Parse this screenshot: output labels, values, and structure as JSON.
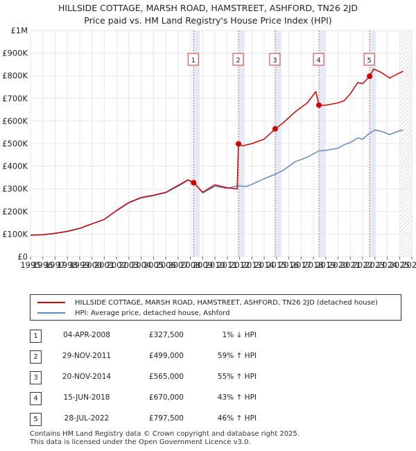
{
  "title_line1": "HILLSIDE COTTAGE, MARSH ROAD, HAMSTREET, ASHFORD, TN26 2JD",
  "title_line2": "Price paid vs. HM Land Registry's House Price Index (HPI)",
  "colors": {
    "property": "#cc0000",
    "hpi": "#5b8ac0",
    "vline": "#e06060",
    "shade": "#dde6f3",
    "grid": "#e6e6e6"
  },
  "chart_data": {
    "type": "line",
    "xlim": [
      1995,
      2026
    ],
    "ylim": [
      0,
      1000000
    ],
    "x_ticks": [
      1995,
      1996,
      1997,
      1998,
      1999,
      2000,
      2001,
      2002,
      2003,
      2004,
      2005,
      2006,
      2007,
      2008,
      2009,
      2010,
      2011,
      2012,
      2013,
      2014,
      2015,
      2016,
      2017,
      2018,
      2019,
      2020,
      2021,
      2022,
      2023,
      2024,
      2025,
      2026
    ],
    "y_ticks": [
      {
        "value": 0,
        "label": "£0"
      },
      {
        "value": 100000,
        "label": "£100K"
      },
      {
        "value": 200000,
        "label": "£200K"
      },
      {
        "value": 300000,
        "label": "£300K"
      },
      {
        "value": 400000,
        "label": "£400K"
      },
      {
        "value": 500000,
        "label": "£500K"
      },
      {
        "value": 600000,
        "label": "£600K"
      },
      {
        "value": 700000,
        "label": "£700K"
      },
      {
        "value": 800000,
        "label": "£800K"
      },
      {
        "value": 900000,
        "label": "£900K"
      },
      {
        "value": 1000000,
        "label": "£1M"
      }
    ],
    "grid": true,
    "future_shade_from": 2025.0,
    "series": [
      {
        "name": "HILLSIDE COTTAGE, MARSH ROAD, HAMSTREET, ASHFORD, TN26 2JD (detached house)",
        "color": "#cc0000",
        "points": [
          [
            1995.0,
            95000
          ],
          [
            1996.0,
            97000
          ],
          [
            1997.0,
            103000
          ],
          [
            1998.0,
            112000
          ],
          [
            1999.0,
            125000
          ],
          [
            2000.0,
            145000
          ],
          [
            2001.0,
            165000
          ],
          [
            2002.0,
            205000
          ],
          [
            2003.0,
            240000
          ],
          [
            2004.0,
            262000
          ],
          [
            2005.0,
            272000
          ],
          [
            2006.0,
            285000
          ],
          [
            2007.0,
            315000
          ],
          [
            2007.8,
            340000
          ],
          [
            2008.26,
            327500
          ],
          [
            2009.0,
            285000
          ],
          [
            2010.0,
            318000
          ],
          [
            2011.0,
            305000
          ],
          [
            2011.8,
            300000
          ],
          [
            2011.91,
            499000
          ],
          [
            2012.2,
            490000
          ],
          [
            2013.0,
            500000
          ],
          [
            2014.0,
            520000
          ],
          [
            2014.89,
            565000
          ],
          [
            2015.5,
            590000
          ],
          [
            2016.5,
            640000
          ],
          [
            2017.5,
            680000
          ],
          [
            2018.2,
            730000
          ],
          [
            2018.45,
            670000
          ],
          [
            2019.0,
            670000
          ],
          [
            2020.0,
            680000
          ],
          [
            2020.5,
            690000
          ],
          [
            2021.0,
            720000
          ],
          [
            2021.6,
            770000
          ],
          [
            2022.0,
            765000
          ],
          [
            2022.57,
            797500
          ],
          [
            2022.9,
            830000
          ],
          [
            2023.5,
            815000
          ],
          [
            2024.2,
            790000
          ],
          [
            2024.9,
            810000
          ],
          [
            2025.3,
            820000
          ]
        ]
      },
      {
        "name": "HPI: Average price, detached house, Ashford",
        "color": "#5b8ac0",
        "points": [
          [
            1995.0,
            96000
          ],
          [
            1996.0,
            98000
          ],
          [
            1997.0,
            104000
          ],
          [
            1998.0,
            113000
          ],
          [
            1999.0,
            126000
          ],
          [
            2000.0,
            146000
          ],
          [
            2001.0,
            165000
          ],
          [
            2002.0,
            203000
          ],
          [
            2003.0,
            238000
          ],
          [
            2004.0,
            260000
          ],
          [
            2005.0,
            270000
          ],
          [
            2006.0,
            283000
          ],
          [
            2007.0,
            312000
          ],
          [
            2007.8,
            338000
          ],
          [
            2008.26,
            330000
          ],
          [
            2009.0,
            282000
          ],
          [
            2010.0,
            312000
          ],
          [
            2011.0,
            302000
          ],
          [
            2011.91,
            314000
          ],
          [
            2012.5,
            310000
          ],
          [
            2013.0,
            320000
          ],
          [
            2014.0,
            345000
          ],
          [
            2014.89,
            365000
          ],
          [
            2015.5,
            380000
          ],
          [
            2016.5,
            420000
          ],
          [
            2017.5,
            440000
          ],
          [
            2018.45,
            468000
          ],
          [
            2019.0,
            470000
          ],
          [
            2020.0,
            480000
          ],
          [
            2020.5,
            495000
          ],
          [
            2021.0,
            505000
          ],
          [
            2021.6,
            525000
          ],
          [
            2022.0,
            520000
          ],
          [
            2022.57,
            546000
          ],
          [
            2023.0,
            560000
          ],
          [
            2023.5,
            555000
          ],
          [
            2024.2,
            540000
          ],
          [
            2024.9,
            555000
          ],
          [
            2025.3,
            560000
          ]
        ]
      }
    ],
    "transactions": [
      {
        "num": "1",
        "x": 2008.26,
        "y": 327500
      },
      {
        "num": "2",
        "x": 2011.91,
        "y": 499000
      },
      {
        "num": "3",
        "x": 2014.89,
        "y": 565000
      },
      {
        "num": "4",
        "x": 2018.45,
        "y": 670000
      },
      {
        "num": "5",
        "x": 2022.57,
        "y": 797500
      }
    ]
  },
  "legend": [
    {
      "label": "HILLSIDE COTTAGE, MARSH ROAD, HAMSTREET, ASHFORD, TN26 2JD (detached house)",
      "color": "#cc0000"
    },
    {
      "label": "HPI: Average price, detached house, Ashford",
      "color": "#5b8ac0"
    }
  ],
  "transactions_table": [
    {
      "num": "1",
      "date": "04-APR-2008",
      "price": "£327,500",
      "hpi": "1% ↓ HPI"
    },
    {
      "num": "2",
      "date": "29-NOV-2011",
      "price": "£499,000",
      "hpi": "59% ↑ HPI"
    },
    {
      "num": "3",
      "date": "20-NOV-2014",
      "price": "£565,000",
      "hpi": "55% ↑ HPI"
    },
    {
      "num": "4",
      "date": "15-JUN-2018",
      "price": "£670,000",
      "hpi": "43% ↑ HPI"
    },
    {
      "num": "5",
      "date": "28-JUL-2022",
      "price": "£797,500",
      "hpi": "46% ↑ HPI"
    }
  ],
  "footer_line1": "Contains HM Land Registry data © Crown copyright and database right 2025.",
  "footer_line2": "This data is licensed under the Open Government Licence v3.0."
}
